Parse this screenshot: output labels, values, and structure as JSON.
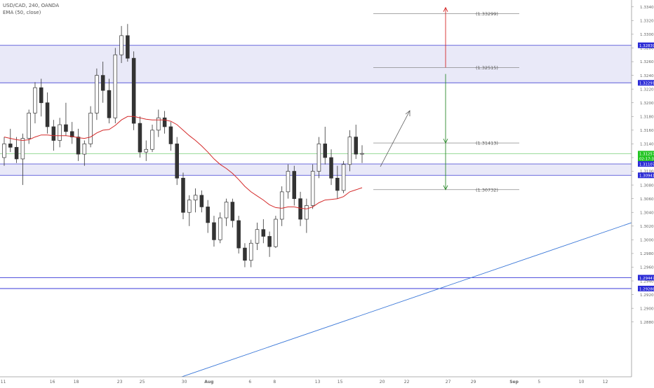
{
  "legend": {
    "symbol_line": "USD/CAD, 240, OANDA",
    "indicator_line": "EMA (50, close)"
  },
  "chart_data": {
    "type": "candlestick",
    "symbol": "USD/CAD",
    "timeframe": "240",
    "source": "OANDA",
    "ylim": [
      1.28,
      1.335
    ],
    "y_ticks": [
      "1.33400",
      "1.33200",
      "1.33000",
      "1.32800",
      "1.32600",
      "1.32400",
      "1.32200",
      "1.32000",
      "1.31800",
      "1.31600",
      "1.31400",
      "1.31200",
      "1.31000",
      "1.30800",
      "1.30600",
      "1.30400",
      "1.30200",
      "1.30000",
      "1.29800",
      "1.29600",
      "1.29400",
      "1.29200",
      "1.29000",
      "1.28800"
    ],
    "x_ticks": [
      "11",
      "16",
      "18",
      "23",
      "25",
      "30",
      "Aug",
      "6",
      "8",
      "13",
      "15",
      "20",
      "22",
      "27",
      "29",
      "Sep",
      "5",
      "10",
      "12"
    ],
    "price_labels": [
      {
        "text": "1.32839",
        "value": 1.32839,
        "color": "#2b2bd6"
      },
      {
        "text": "1.32291",
        "value": 1.32291,
        "color": "#2b2bd6"
      },
      {
        "text": "1.31257",
        "value": 1.31257,
        "color": "#22c522"
      },
      {
        "text": "02:17:36",
        "value": 1.31185,
        "color": "#22c522"
      },
      {
        "text": "1.31107",
        "value": 1.31107,
        "color": "#2b2bd6"
      },
      {
        "text": "1.30941",
        "value": 1.30941,
        "color": "#2b2bd6"
      },
      {
        "text": "1.29447",
        "value": 1.29447,
        "color": "#2b2bd6"
      },
      {
        "text": "1.29288",
        "value": 1.29288,
        "color": "#2b2bd6"
      }
    ],
    "zones": [
      {
        "top": 1.32839,
        "bottom": 1.32291
      },
      {
        "top": 1.31107,
        "bottom": 1.30941
      }
    ],
    "hlines": [
      1.29447,
      1.29288
    ],
    "current_price": 1.31257,
    "targets": [
      {
        "label": "(1.33299)",
        "value": 1.33299
      },
      {
        "label": "(1.32515)",
        "value": 1.32515
      },
      {
        "label": "(1.31413)",
        "value": 1.31413
      },
      {
        "label": "(1.30732)",
        "value": 1.30732
      }
    ],
    "candles": [
      [
        1.312,
        1.315,
        1.3108,
        1.314
      ],
      [
        1.314,
        1.3162,
        1.3128,
        1.3135
      ],
      [
        1.3135,
        1.315,
        1.3112,
        1.3118
      ],
      [
        1.3118,
        1.3155,
        1.308,
        1.3148
      ],
      [
        1.3148,
        1.319,
        1.314,
        1.3185
      ],
      [
        1.3185,
        1.323,
        1.317,
        1.3222
      ],
      [
        1.3222,
        1.3235,
        1.318,
        1.32
      ],
      [
        1.32,
        1.3215,
        1.3155,
        1.3165
      ],
      [
        1.3165,
        1.3175,
        1.313,
        1.3145
      ],
      [
        1.3145,
        1.3178,
        1.3135,
        1.3168
      ],
      [
        1.3168,
        1.32,
        1.3152,
        1.3158
      ],
      [
        1.3158,
        1.3172,
        1.314,
        1.315
      ],
      [
        1.315,
        1.3162,
        1.3115,
        1.3125
      ],
      [
        1.3125,
        1.3145,
        1.3108,
        1.314
      ],
      [
        1.314,
        1.3195,
        1.3135,
        1.3185
      ],
      [
        1.3185,
        1.325,
        1.3175,
        1.324
      ],
      [
        1.324,
        1.326,
        1.32,
        1.3218
      ],
      [
        1.3218,
        1.3235,
        1.317,
        1.3178
      ],
      [
        1.3178,
        1.328,
        1.317,
        1.327
      ],
      [
        1.327,
        1.3312,
        1.3258,
        1.3298
      ],
      [
        1.3298,
        1.3315,
        1.326,
        1.3265
      ],
      [
        1.3265,
        1.3275,
        1.316,
        1.317
      ],
      [
        1.317,
        1.318,
        1.312,
        1.3128
      ],
      [
        1.3128,
        1.3145,
        1.3115,
        1.3132
      ],
      [
        1.3132,
        1.3168,
        1.3128,
        1.316
      ],
      [
        1.316,
        1.319,
        1.315,
        1.3178
      ],
      [
        1.3178,
        1.3188,
        1.3155,
        1.3165
      ],
      [
        1.3165,
        1.3172,
        1.313,
        1.314
      ],
      [
        1.314,
        1.315,
        1.308,
        1.309
      ],
      [
        1.309,
        1.3098,
        1.303,
        1.304
      ],
      [
        1.304,
        1.3065,
        1.302,
        1.3058
      ],
      [
        1.3058,
        1.3075,
        1.304,
        1.3065
      ],
      [
        1.3065,
        1.3072,
        1.304,
        1.3048
      ],
      [
        1.3048,
        1.3058,
        1.301,
        1.3025
      ],
      [
        1.3025,
        1.3035,
        1.299,
        1.3
      ],
      [
        1.3,
        1.304,
        1.2995,
        1.3032
      ],
      [
        1.3032,
        1.306,
        1.302,
        1.3055
      ],
      [
        1.3055,
        1.306,
        1.3018,
        1.3028
      ],
      [
        1.3028,
        1.3035,
        1.298,
        1.2988
      ],
      [
        1.2988,
        1.2995,
        1.296,
        1.297
      ],
      [
        1.297,
        1.3,
        1.296,
        1.2995
      ],
      [
        1.2995,
        1.3025,
        1.2985,
        1.3015
      ],
      [
        1.3015,
        1.303,
        1.2995,
        1.3005
      ],
      [
        1.3005,
        1.3012,
        1.2975,
        1.299
      ],
      [
        1.299,
        1.3035,
        1.2988,
        1.303
      ],
      [
        1.303,
        1.3078,
        1.302,
        1.307
      ],
      [
        1.307,
        1.311,
        1.306,
        1.31
      ],
      [
        1.31,
        1.3108,
        1.305,
        1.306
      ],
      [
        1.306,
        1.307,
        1.302,
        1.303
      ],
      [
        1.303,
        1.306,
        1.301,
        1.305
      ],
      [
        1.305,
        1.311,
        1.3045,
        1.31
      ],
      [
        1.31,
        1.315,
        1.309,
        1.314
      ],
      [
        1.314,
        1.3165,
        1.311,
        1.312
      ],
      [
        1.312,
        1.3132,
        1.308,
        1.309
      ],
      [
        1.309,
        1.3108,
        1.306,
        1.3072
      ],
      [
        1.3072,
        1.3115,
        1.3068,
        1.311
      ],
      [
        1.311,
        1.316,
        1.31,
        1.315
      ],
      [
        1.315,
        1.3168,
        1.3118,
        1.3125
      ],
      [
        1.3125,
        1.3138,
        1.3112,
        1.3126
      ]
    ],
    "ema": [
      1.315,
      1.3148,
      1.3146,
      1.3145,
      1.3146,
      1.315,
      1.3153,
      1.3153,
      1.3152,
      1.3152,
      1.3152,
      1.3151,
      1.3149,
      1.3148,
      1.315,
      1.3156,
      1.316,
      1.3161,
      1.3167,
      1.3175,
      1.318,
      1.318,
      1.3178,
      1.3176,
      1.3175,
      1.3175,
      1.3175,
      1.3173,
      1.3168,
      1.316,
      1.3152,
      1.3145,
      1.3137,
      1.3128,
      1.3118,
      1.311,
      1.3104,
      1.3097,
      1.3088,
      1.3078,
      1.307,
      1.3064,
      1.3058,
      1.3051,
      1.3047,
      1.3046,
      1.3048,
      1.3048,
      1.3046,
      1.3045,
      1.3048,
      1.3054,
      1.3058,
      1.3059,
      1.306,
      1.3063,
      1.307,
      1.3073,
      1.3076
    ],
    "ylabel": "",
    "xlabel": ""
  }
}
